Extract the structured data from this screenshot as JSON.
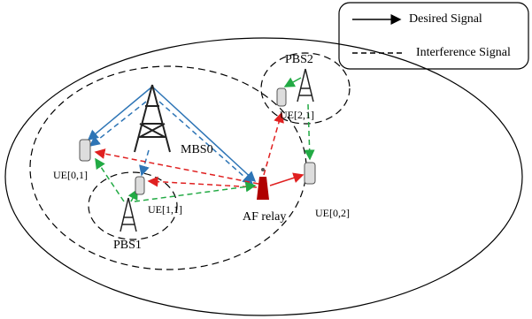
{
  "legend": {
    "desired": "Desired Signal",
    "interference": "Interference Signal"
  },
  "nodes": [
    {
      "label": "PBS2"
    },
    {
      "label": "UE[2,1]"
    },
    {
      "label": "MBS0"
    },
    {
      "label": "UE[0,1]"
    },
    {
      "label": "UE[1,1]"
    },
    {
      "label": "AF relay"
    },
    {
      "label": "UE[0,2]"
    },
    {
      "label": "PBS1"
    }
  ]
}
